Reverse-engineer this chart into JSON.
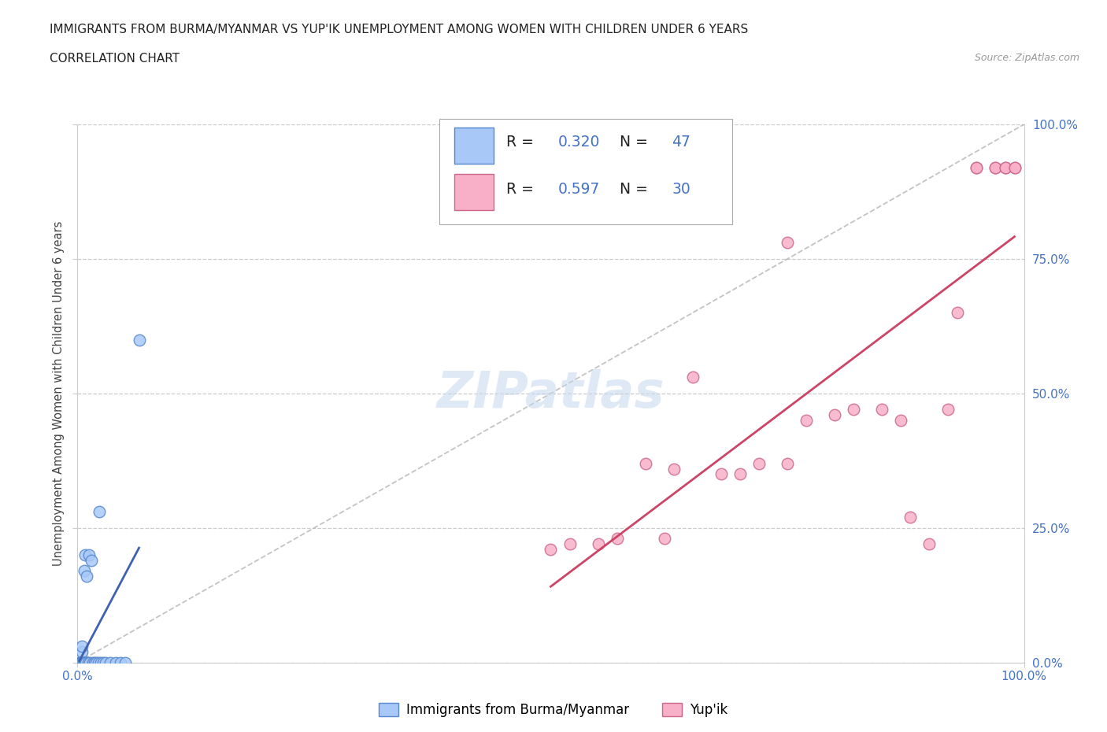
{
  "title1": "IMMIGRANTS FROM BURMA/MYANMAR VS YUP'IK UNEMPLOYMENT AMONG WOMEN WITH CHILDREN UNDER 6 YEARS",
  "title2": "CORRELATION CHART",
  "source": "Source: ZipAtlas.com",
  "ylabel": "Unemployment Among Women with Children Under 6 years",
  "xlim": [
    0,
    1.0
  ],
  "ylim": [
    0,
    1.0
  ],
  "xtick_vals": [
    0.0,
    1.0
  ],
  "xtick_labels": [
    "0.0%",
    "100.0%"
  ],
  "ytick_vals": [
    0.0,
    0.25,
    0.5,
    0.75,
    1.0
  ],
  "ytick_labels": [
    "0.0%",
    "25.0%",
    "50.0%",
    "75.0%",
    "100.0%"
  ],
  "series1_color": "#a8c8f8",
  "series2_color": "#f8b0c8",
  "series1_edgecolor": "#5588cc",
  "series2_edgecolor": "#cc6688",
  "trend1_color": "#4060b0",
  "trend2_color": "#cc4466",
  "background_color": "#ffffff",
  "grid_color": "#cccccc",
  "tick_color": "#4472c4",
  "series1_x": [
    0.002,
    0.002,
    0.002,
    0.002,
    0.003,
    0.003,
    0.003,
    0.003,
    0.003,
    0.003,
    0.003,
    0.004,
    0.004,
    0.004,
    0.004,
    0.004,
    0.004,
    0.005,
    0.005,
    0.005,
    0.005,
    0.005,
    0.006,
    0.006,
    0.007,
    0.007,
    0.008,
    0.008,
    0.009,
    0.01,
    0.011,
    0.012,
    0.013,
    0.015,
    0.016,
    0.018,
    0.02,
    0.022,
    0.023,
    0.025,
    0.027,
    0.03,
    0.035,
    0.04,
    0.045,
    0.05,
    0.065
  ],
  "series1_y": [
    0.0,
    0.0,
    0.0,
    0.0,
    0.0,
    0.0,
    0.0,
    0.0,
    0.0,
    0.0,
    0.0,
    0.0,
    0.0,
    0.0,
    0.0,
    0.0,
    0.0,
    0.0,
    0.0,
    0.0,
    0.02,
    0.03,
    0.0,
    0.0,
    0.0,
    0.17,
    0.0,
    0.2,
    0.0,
    0.16,
    0.0,
    0.2,
    0.0,
    0.19,
    0.0,
    0.0,
    0.0,
    0.0,
    0.28,
    0.0,
    0.0,
    0.0,
    0.0,
    0.0,
    0.0,
    0.0,
    0.6
  ],
  "series2_x": [
    0.5,
    0.52,
    0.55,
    0.57,
    0.6,
    0.62,
    0.63,
    0.65,
    0.68,
    0.7,
    0.72,
    0.75,
    0.75,
    0.77,
    0.8,
    0.82,
    0.85,
    0.87,
    0.88,
    0.9,
    0.92,
    0.93,
    0.95,
    0.95,
    0.97,
    0.97,
    0.98,
    0.98,
    0.99,
    0.99
  ],
  "series2_y": [
    0.21,
    0.22,
    0.22,
    0.23,
    0.37,
    0.23,
    0.36,
    0.53,
    0.35,
    0.35,
    0.37,
    0.37,
    0.78,
    0.45,
    0.46,
    0.47,
    0.47,
    0.45,
    0.27,
    0.22,
    0.47,
    0.65,
    0.92,
    0.92,
    0.92,
    0.92,
    0.92,
    0.92,
    0.92,
    0.92
  ],
  "watermark_color": "#c5d8f0"
}
